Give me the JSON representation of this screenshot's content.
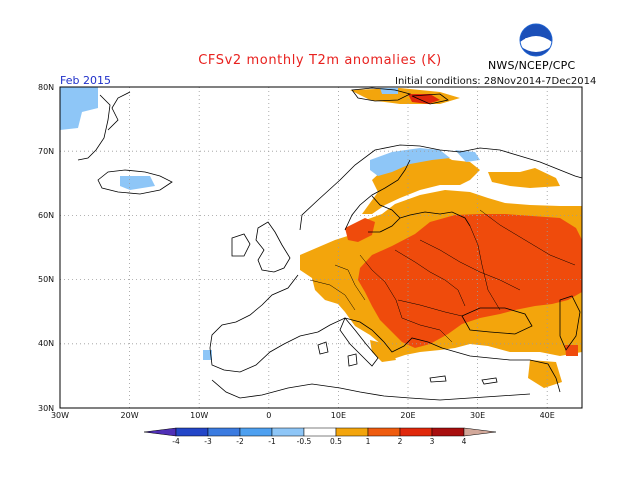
{
  "header": {
    "title": "CFSv2 monthly T2m anomalies (K)",
    "month": "Feb 2015",
    "initial_conditions": "Initial conditions: 28Nov2014-7Dec2014",
    "agency": "NWS/NCEP/CPC",
    "logo_text": "NOAA"
  },
  "map": {
    "lon_range": [
      -30,
      45
    ],
    "lat_range": [
      30,
      80
    ],
    "x_ticks": [
      "30W",
      "20W",
      "10W",
      "0",
      "10E",
      "20E",
      "30E",
      "40E"
    ],
    "y_ticks": [
      "80N",
      "70N",
      "60N",
      "50N",
      "40N",
      "30N"
    ],
    "grid": true
  },
  "colorbar": {
    "labels": [
      "-4",
      "-3",
      "-2",
      "-1",
      "-0.5",
      "0.5",
      "1",
      "2",
      "3",
      "4"
    ],
    "colors": [
      "#4f2fb6",
      "#2346c8",
      "#3b7be0",
      "#4ea0f0",
      "#8ec6f7",
      "#ffffff",
      "#f3a50c",
      "#ef5c0f",
      "#e0280b",
      "#a80e0e",
      "#d2a89a"
    ]
  }
}
